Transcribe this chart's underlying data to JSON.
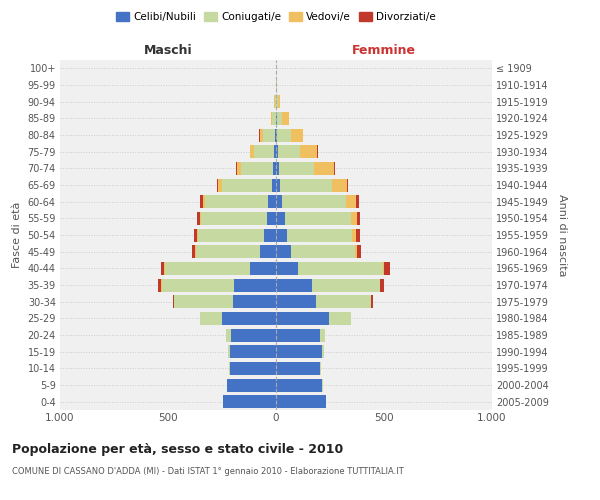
{
  "age_groups": [
    "0-4",
    "5-9",
    "10-14",
    "15-19",
    "20-24",
    "25-29",
    "30-34",
    "35-39",
    "40-44",
    "45-49",
    "50-54",
    "55-59",
    "60-64",
    "65-69",
    "70-74",
    "75-79",
    "80-84",
    "85-89",
    "90-94",
    "95-99",
    "100+"
  ],
  "birth_years": [
    "2005-2009",
    "2000-2004",
    "1995-1999",
    "1990-1994",
    "1985-1989",
    "1980-1984",
    "1975-1979",
    "1970-1974",
    "1965-1969",
    "1960-1964",
    "1955-1959",
    "1950-1954",
    "1945-1949",
    "1940-1944",
    "1935-1939",
    "1930-1934",
    "1925-1929",
    "1920-1924",
    "1915-1919",
    "1910-1914",
    "≤ 1909"
  ],
  "male": {
    "celibi": [
      245,
      225,
      215,
      215,
      210,
      250,
      200,
      195,
      120,
      75,
      55,
      40,
      35,
      20,
      15,
      10,
      5,
      2,
      1,
      0,
      0
    ],
    "coniugati": [
      0,
      1,
      2,
      5,
      20,
      100,
      270,
      335,
      395,
      295,
      305,
      305,
      295,
      230,
      145,
      90,
      55,
      15,
      4,
      1,
      0
    ],
    "vedovi": [
      0,
      0,
      0,
      0,
      0,
      1,
      1,
      2,
      2,
      3,
      5,
      8,
      10,
      20,
      20,
      20,
      15,
      8,
      2,
      0,
      0
    ],
    "divorziati": [
      0,
      0,
      0,
      0,
      1,
      2,
      5,
      15,
      15,
      15,
      15,
      12,
      10,
      5,
      5,
      2,
      2,
      0,
      0,
      0,
      0
    ]
  },
  "female": {
    "nubili": [
      230,
      215,
      205,
      215,
      205,
      245,
      185,
      165,
      100,
      70,
      50,
      40,
      30,
      20,
      15,
      10,
      5,
      4,
      2,
      1,
      0
    ],
    "coniugate": [
      0,
      1,
      2,
      5,
      22,
      100,
      255,
      315,
      395,
      295,
      300,
      305,
      295,
      240,
      160,
      100,
      65,
      25,
      8,
      2,
      0
    ],
    "vedove": [
      0,
      0,
      0,
      0,
      0,
      1,
      2,
      3,
      5,
      10,
      20,
      30,
      45,
      70,
      95,
      80,
      55,
      30,
      8,
      2,
      0
    ],
    "divorziate": [
      0,
      0,
      0,
      0,
      1,
      2,
      8,
      15,
      30,
      20,
      20,
      15,
      15,
      5,
      5,
      3,
      2,
      0,
      0,
      0,
      0
    ]
  },
  "colors": {
    "celibi": "#4472c4",
    "coniugati": "#c5d9a0",
    "vedovi": "#f0c060",
    "divorziati": "#c0392b"
  },
  "title": "Popolazione per età, sesso e stato civile - 2010",
  "subtitle": "COMUNE DI CASSANO D'ADDA (MI) - Dati ISTAT 1° gennaio 2010 - Elaborazione TUTTITALIA.IT",
  "xlabel_left": "Maschi",
  "xlabel_right": "Femmine",
  "ylabel_left": "Fasce di età",
  "ylabel_right": "Anni di nascita",
  "xlim": 1000,
  "legend_labels": [
    "Celibi/Nubili",
    "Coniugati/e",
    "Vedovi/e",
    "Divorziati/e"
  ],
  "bg_color": "#f0f0f0",
  "grid_color": "#cccccc"
}
